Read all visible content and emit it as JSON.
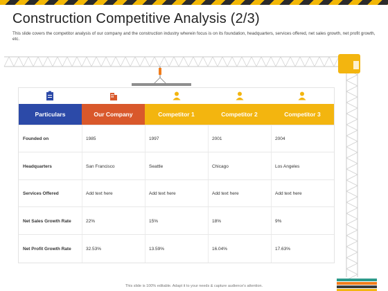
{
  "header": {
    "title": "Construction Competitive Analysis (2/3)",
    "subtitle": "This slide covers the competitor analysis of our company and the construction industry wherein focus is on its foundation, headquarters, services offered, net sales growth, net profit growth, etc."
  },
  "table": {
    "icons": [
      "clipboard-icon",
      "building-icon",
      "person-icon",
      "person-icon",
      "person-icon"
    ],
    "columns": [
      {
        "label": "Particulars",
        "color": "#2c4aa8"
      },
      {
        "label": "Our Company",
        "color": "#d9582b"
      },
      {
        "label": "Competitor 1",
        "color": "#f3b50f"
      },
      {
        "label": "Competitor 2",
        "color": "#f3b50f"
      },
      {
        "label": "Competitor 3",
        "color": "#f3b50f"
      }
    ],
    "rows": [
      {
        "label": "Founded on",
        "values": [
          "1985",
          "1997",
          "2001",
          "2004"
        ]
      },
      {
        "label": "Headquarters",
        "values": [
          "San Francisco",
          "Seattle",
          "Chicago",
          "Los Angeles"
        ]
      },
      {
        "label": "Services Offered",
        "values": [
          "Add text here",
          "Add text here",
          "Add text here",
          "Add text here"
        ]
      },
      {
        "label": "Net Sales Growth Rate",
        "values": [
          "22%",
          "15%",
          "18%",
          "9%"
        ]
      },
      {
        "label": "Net Profit Growth Rate",
        "values": [
          "32.53%",
          "13.59%",
          "16.04%",
          "17.63%"
        ]
      }
    ]
  },
  "footer": {
    "note": "This slide is 100% editable. Adapt it to your needs & capture audience's attention."
  },
  "colors": {
    "accent_yellow": "#f3b50f",
    "accent_orange": "#d9582b",
    "accent_blue": "#2c4aa8",
    "crane_gray": "#c8c8c8"
  }
}
